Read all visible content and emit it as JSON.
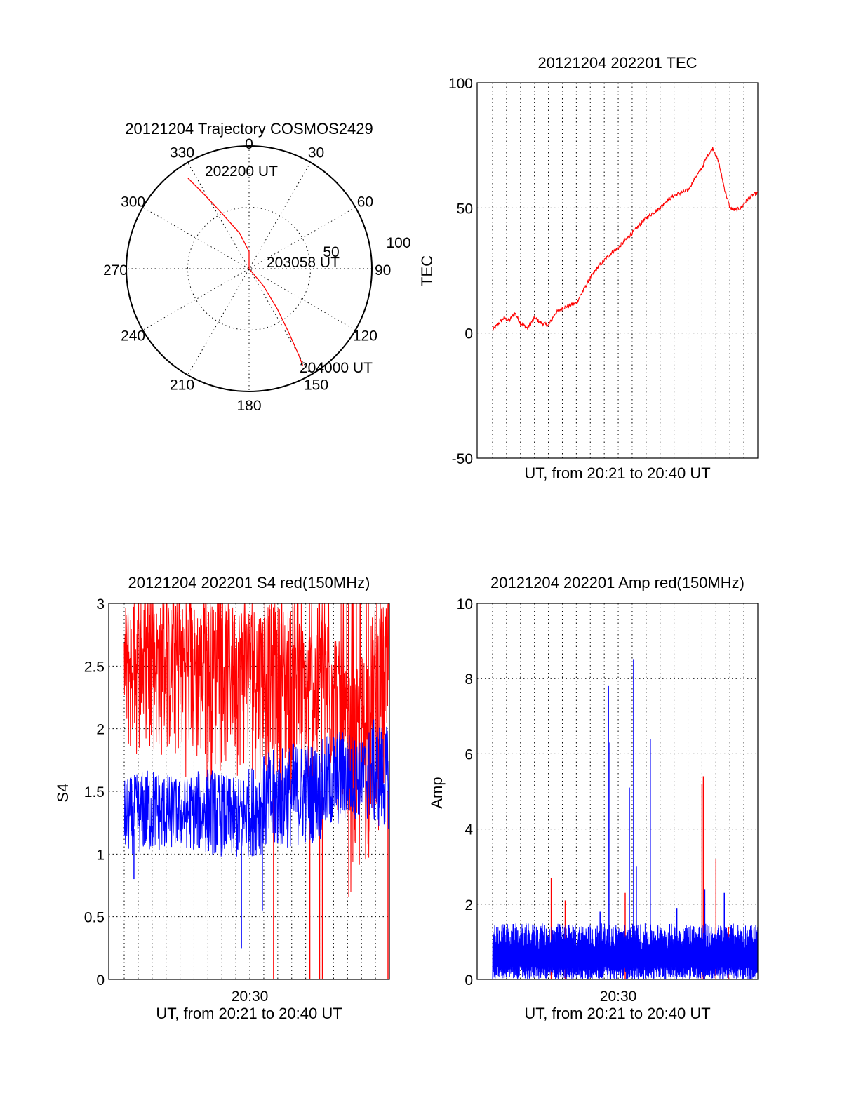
{
  "chart_data": [
    {
      "type": "polar",
      "title": "20121204 Trajectory COSMOS2429",
      "angle_labels": [
        "0",
        "30",
        "60",
        "90",
        "120",
        "150",
        "180",
        "210",
        "240",
        "270",
        "300",
        "330"
      ],
      "radius_labels": [
        "50",
        "100"
      ],
      "radius_range": [
        0,
        100
      ],
      "grid": true,
      "series": [
        {
          "color": "#ff0000",
          "points": [
            {
              "az": 326,
              "r": 89
            },
            {
              "az": 329,
              "r": 70
            },
            {
              "az": 334,
              "r": 50
            },
            {
              "az": 345,
              "r": 30
            },
            {
              "az": 0,
              "r": 14
            },
            {
              "az": 90,
              "r": 0
            },
            {
              "az": 140,
              "r": 18
            },
            {
              "az": 145,
              "r": 40
            },
            {
              "az": 148,
              "r": 60
            },
            {
              "az": 150,
              "r": 80
            },
            {
              "az": 151,
              "r": 90
            }
          ]
        }
      ],
      "annotations": [
        {
          "text": "202200 UT",
          "az": 345,
          "r": 84
        },
        {
          "text": "203058 UT",
          "az": 74,
          "r": 33
        },
        {
          "text": "204000 UT",
          "az": 140,
          "r": 96
        }
      ]
    },
    {
      "type": "line",
      "title": "20121204 202201 TEC",
      "xlabel": "UT, from 20:21 to 20:40 UT",
      "ylabel": "TEC",
      "ylim": [
        -50,
        100
      ],
      "yticks": [
        "-50",
        "0",
        "50",
        "100"
      ],
      "xrange_minutes": [
        0,
        19
      ],
      "grid": true,
      "series": [
        {
          "color": "#ff0000",
          "x": [
            0.0,
            0.3,
            0.8,
            1.2,
            1.6,
            2.0,
            2.5,
            3.0,
            3.5,
            4.0,
            4.5,
            5.0,
            5.5,
            6.0,
            6.5,
            7.0,
            7.5,
            8.0,
            8.5,
            9.0,
            9.5,
            10.0,
            10.5,
            11.0,
            11.5,
            12.0,
            12.5,
            13.0,
            13.5,
            14.0,
            14.5,
            15.0,
            15.4,
            15.8,
            16.2,
            16.6,
            17.0,
            17.4,
            17.8,
            18.2,
            18.6,
            19.0
          ],
          "y": [
            1,
            3,
            6,
            5,
            8,
            4,
            2,
            6,
            4,
            3,
            8,
            10,
            11,
            12,
            17,
            22,
            26,
            29,
            32,
            34,
            37,
            40,
            43,
            46,
            48,
            50,
            53,
            55,
            56,
            57,
            62,
            66,
            71,
            74,
            68,
            58,
            50,
            49,
            50,
            53,
            55,
            56
          ]
        }
      ]
    },
    {
      "type": "line",
      "title": "20121204 202201 S4 red(150MHz)",
      "xlabel": "UT, from 20:21 to 20:40 UT",
      "ylabel": "S4",
      "ylim": [
        0,
        3
      ],
      "yticks": [
        "0",
        "0.5",
        "1",
        "1.5",
        "2",
        "2.5",
        "3"
      ],
      "xticks": [
        "20:30"
      ],
      "xrange_minutes": [
        0,
        19
      ],
      "grid": true,
      "series": [
        {
          "color": "#ff0000",
          "envelope_minutes": [
            0,
            2,
            4,
            6,
            8,
            10,
            12,
            13,
            14,
            15,
            16,
            17,
            18,
            19
          ],
          "envelope_low": [
            1.6,
            1.7,
            1.6,
            1.5,
            1.6,
            1.5,
            1.3,
            1.2,
            1.2,
            1.4,
            0.6,
            0.55,
            1.1,
            1.2
          ],
          "envelope_high": [
            3.0,
            3.0,
            3.0,
            3.0,
            3.0,
            3.0,
            3.0,
            2.8,
            3.0,
            2.9,
            2.4,
            2.6,
            3.0,
            3.0
          ],
          "spikes_to_zero_minutes": [
            10.7,
            13.3,
            14.0,
            14.2,
            18.9
          ]
        },
        {
          "color": "#0000ff",
          "envelope_minutes": [
            0,
            2,
            4,
            6,
            8,
            10,
            12,
            14,
            15,
            16,
            17,
            18,
            19
          ],
          "envelope_low": [
            1.0,
            1.0,
            1.05,
            1.0,
            0.95,
            1.0,
            1.05,
            1.1,
            1.2,
            1.25,
            1.3,
            1.2,
            1.2
          ],
          "envelope_high": [
            1.6,
            1.7,
            1.6,
            1.7,
            1.6,
            1.8,
            1.9,
            1.9,
            2.0,
            2.0,
            1.9,
            2.1,
            2.0
          ],
          "spikes_down": [
            {
              "t": 8.4,
              "v": 0.25
            },
            {
              "t": 9.9,
              "v": 0.55
            },
            {
              "t": 0.7,
              "v": 0.8
            }
          ]
        }
      ]
    },
    {
      "type": "line",
      "title": "20121204 202201 Amp red(150MHz)",
      "xlabel": "UT, from 20:21 to 20:40 UT",
      "ylabel": "Amp",
      "ylim": [
        0,
        10
      ],
      "yticks": [
        "0",
        "2",
        "4",
        "6",
        "8",
        "10"
      ],
      "xticks": [
        "20:30"
      ],
      "xrange_minutes": [
        0,
        19
      ],
      "grid": true,
      "series": [
        {
          "color": "#ff0000",
          "spikes": [
            {
              "t": 4.2,
              "v": 2.7
            },
            {
              "t": 5.2,
              "v": 2.1
            },
            {
              "t": 9.5,
              "v": 2.3
            },
            {
              "t": 15.0,
              "v": 5.2
            },
            {
              "t": 15.1,
              "v": 5.4
            },
            {
              "t": 16.0,
              "v": 3.2
            },
            {
              "t": 16.9,
              "v": 1.4
            }
          ]
        },
        {
          "color": "#0000ff",
          "baseline_band": [
            0.0,
            1.0
          ],
          "spikes": [
            {
              "t": 8.3,
              "v": 7.8
            },
            {
              "t": 8.4,
              "v": 6.3
            },
            {
              "t": 10.1,
              "v": 8.5
            },
            {
              "t": 9.8,
              "v": 5.1
            },
            {
              "t": 10.3,
              "v": 3.0
            },
            {
              "t": 11.3,
              "v": 6.4
            },
            {
              "t": 15.2,
              "v": 2.4
            },
            {
              "t": 16.6,
              "v": 2.3
            },
            {
              "t": 7.7,
              "v": 1.8
            },
            {
              "t": 13.2,
              "v": 1.9
            }
          ]
        }
      ]
    }
  ]
}
